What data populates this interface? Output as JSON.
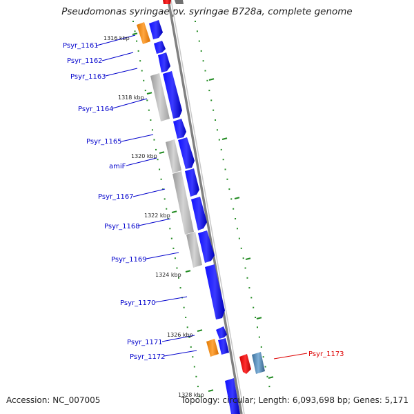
{
  "title": "Pseudomonas syringae pv. syringae B728a, complete genome",
  "accession": "Accession: NC_007005",
  "genome_info": "Topology: circular; Length: 6,093,698 bp; Genes: 5,171",
  "colors": {
    "forward_gene": "#0000ee",
    "forward_gene_highlight": "#5a5aff",
    "reverse_gene_red": "#ee0000",
    "reverse_gene_steel": "#4682b4",
    "orange_feature": "#ff8c00",
    "gray_feature": "#b4b4b4",
    "backbone": "#808080",
    "tick": "#228b22",
    "label_blue": "#0000cc",
    "label_red": "#dd0000"
  },
  "ticks": [
    "1316 kbp",
    "1318 kbp",
    "1320 kbp",
    "1322 kbp",
    "1324 kbp",
    "1326 kbp",
    "1328 kbp"
  ],
  "genes": [
    "Psyr_1161",
    "Psyr_1162",
    "Psyr_1163",
    "Psyr_1164",
    "Psyr_1165",
    "amiF",
    "Psyr_1167",
    "Psyr_1168",
    "Psyr_1169",
    "Psyr_1170",
    "Psyr_1171",
    "Psyr_1172",
    "Psyr_1173"
  ]
}
